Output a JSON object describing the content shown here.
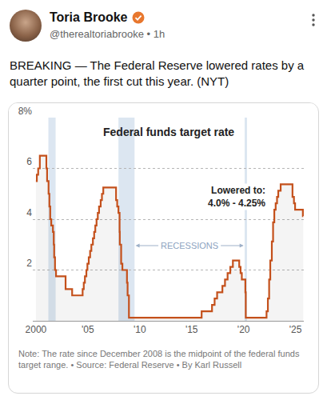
{
  "post": {
    "name": "Toria Brooke",
    "handle_line": "@therealtoriabrooke • 1h",
    "text": "BREAKING — The Federal Reserve lowered rates by a quarter point, the first cut this year. (NYT)"
  },
  "chart_data": {
    "type": "line",
    "line_style": "step",
    "color": "#c4501b",
    "title": "Federal funds target rate",
    "annotation": [
      "Lowered to:",
      "4.0% - 4.25%"
    ],
    "recessions_label": "RECESSIONS",
    "recessions": [
      [
        2001.2,
        2001.9
      ],
      [
        2007.95,
        2009.5
      ],
      [
        2020.1,
        2020.33
      ]
    ],
    "note": "Note: The rate since December 2008 is the midpoint of the federal funds target range. • Source: Federal Reserve • By Karl Russell",
    "x": [
      2000.0,
      2000.09,
      2000.22,
      2000.38,
      2001.01,
      2001.08,
      2001.22,
      2001.3,
      2001.38,
      2001.48,
      2001.64,
      2001.72,
      2001.76,
      2001.84,
      2001.94,
      2002.86,
      2003.49,
      2004.5,
      2004.61,
      2004.72,
      2004.86,
      2004.96,
      2005.09,
      2005.22,
      2005.34,
      2005.49,
      2005.61,
      2005.72,
      2005.84,
      2005.96,
      2006.08,
      2006.24,
      2006.36,
      2006.49,
      2007.72,
      2007.83,
      2007.95,
      2008.06,
      2008.08,
      2008.21,
      2008.33,
      2008.77,
      2008.83,
      2008.96,
      2015.96,
      2016.96,
      2017.21,
      2017.45,
      2017.96,
      2018.21,
      2018.46,
      2018.72,
      2018.97,
      2019.58,
      2019.71,
      2019.83,
      2020.17,
      2020.21,
      2022.21,
      2022.34,
      2022.46,
      2022.57,
      2022.72,
      2022.84,
      2022.96,
      2023.09,
      2023.22,
      2023.34,
      2023.57,
      2024.71,
      2024.85,
      2024.96,
      2025.71,
      2025.75
    ],
    "values": [
      5.5,
      5.75,
      6.0,
      6.5,
      6.0,
      5.5,
      5.0,
      4.5,
      4.0,
      3.75,
      3.5,
      3.0,
      2.5,
      2.0,
      1.75,
      1.25,
      1.0,
      1.25,
      1.5,
      1.75,
      2.0,
      2.25,
      2.5,
      2.75,
      3.0,
      3.25,
      3.5,
      3.75,
      4.0,
      4.25,
      4.5,
      4.75,
      5.0,
      5.25,
      4.75,
      4.5,
      4.25,
      3.5,
      3.0,
      2.25,
      2.0,
      1.5,
      1.0,
      0.125,
      0.375,
      0.625,
      0.875,
      1.125,
      1.375,
      1.625,
      1.875,
      2.125,
      2.375,
      2.125,
      1.875,
      1.625,
      1.125,
      0.125,
      0.375,
      0.875,
      1.625,
      2.375,
      3.125,
      3.875,
      4.375,
      4.625,
      4.875,
      5.125,
      5.375,
      4.875,
      4.625,
      4.375,
      4.125,
      4.125
    ],
    "xlim": [
      1999.7,
      2025.8
    ],
    "xticks": [
      2000,
      {
        "value": 2005,
        "label": "'05"
      },
      {
        "value": 2010,
        "label": "'10"
      },
      {
        "value": 2015,
        "label": "'15"
      },
      {
        "value": 2020,
        "label": "'20"
      },
      {
        "value": 2025,
        "label": "'25"
      }
    ],
    "ylim": [
      0,
      8
    ],
    "yticks": [
      2,
      4,
      6,
      {
        "value": 8,
        "label": "8%"
      }
    ],
    "grid": true
  }
}
